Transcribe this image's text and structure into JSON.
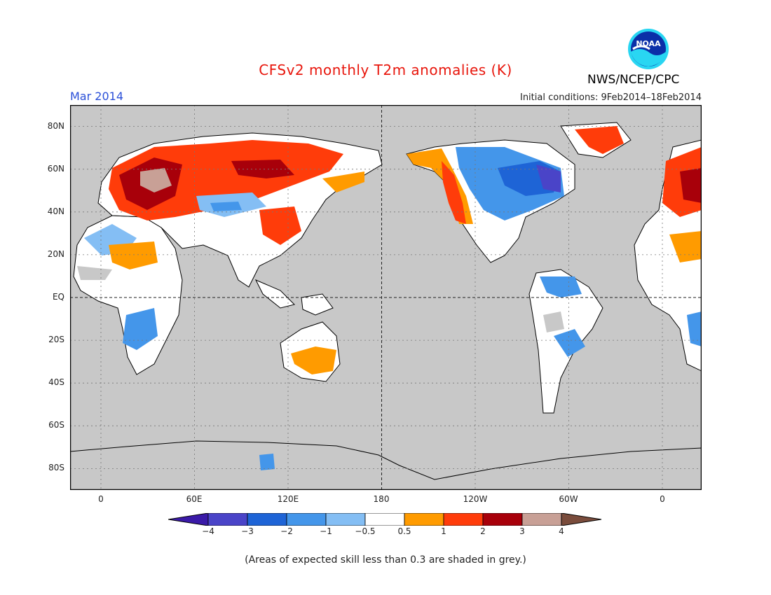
{
  "title": "CFSv2 monthly T2m anomalies (K)",
  "month": "Mar 2014",
  "initial_conditions": "Initial conditions: 9Feb2014–18Feb2014",
  "agency": "NWS/NCEP/CPC",
  "logo_text": "NOAA",
  "lat_labels": [
    "80N",
    "60N",
    "40N",
    "20N",
    "EQ",
    "20S",
    "40S",
    "60S",
    "80S"
  ],
  "lon_labels": [
    "0",
    "60E",
    "120E",
    "180",
    "120W",
    "60W",
    "0"
  ],
  "colorbar": {
    "labels": [
      "−4",
      "−3",
      "−2",
      "−1",
      "−0.5",
      "0.5",
      "1",
      "2",
      "3",
      "4"
    ],
    "colors": [
      "#3a1aa8",
      "#4a44c8",
      "#1e64d6",
      "#4496ea",
      "#84bef4",
      "#ffffff",
      "#ff9b00",
      "#ff3c0a",
      "#a8000a",
      "#c8a096",
      "#7a4c3c"
    ]
  },
  "note": "(Areas of expected skill less than 0.3 are shaded in grey.)",
  "colors": {
    "ocean": "#c8c8c8",
    "title": "#e8160c",
    "month": "#2a4fd8"
  }
}
